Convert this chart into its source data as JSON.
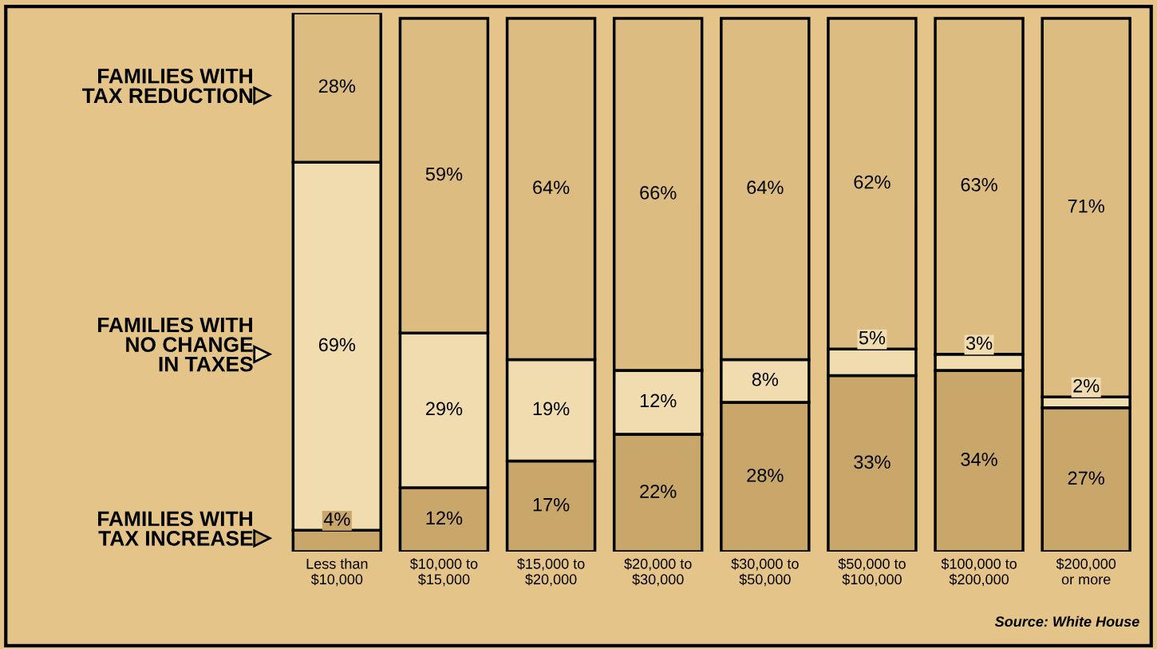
{
  "chart_data": {
    "type": "bar",
    "stacked": true,
    "legend": "left",
    "categories": [
      "Less than\n$10,000",
      "$10,000 to\n$15,000",
      "$15,000 to\n$20,000",
      "$20,000 to\n$30,000",
      "$30,000 to\n$50,000",
      "$50,000 to\n$100,000",
      "$100,000 to\n$200,000",
      "$200,000\nor more"
    ],
    "series": [
      {
        "name": "FAMILIES WITH\nTAX INCREASE",
        "color": "#c9a66a",
        "values": [
          4,
          12,
          17,
          22,
          28,
          33,
          34,
          27
        ],
        "value_labels": [
          "4%",
          "12%",
          "17%",
          "22%",
          "28%",
          "33%",
          "34%",
          "27%"
        ]
      },
      {
        "name": "FAMILIES WITH\nNO CHANGE\nIN TAXES",
        "color": "#f0dcae",
        "values": [
          69,
          29,
          19,
          12,
          8,
          5,
          3,
          2
        ],
        "value_labels": [
          "69%",
          "29%",
          "19%",
          "12%",
          "8%",
          "5%",
          "3%",
          "2%"
        ]
      },
      {
        "name": "FAMILIES WITH\nTAX REDUCTION",
        "color": "#dcbc80",
        "values": [
          28,
          59,
          64,
          66,
          64,
          62,
          63,
          71
        ],
        "value_labels": [
          "28%",
          "59%",
          "64%",
          "66%",
          "64%",
          "62%",
          "63%",
          "71%"
        ]
      }
    ],
    "annotations": [
      "Source: White House"
    ]
  }
}
